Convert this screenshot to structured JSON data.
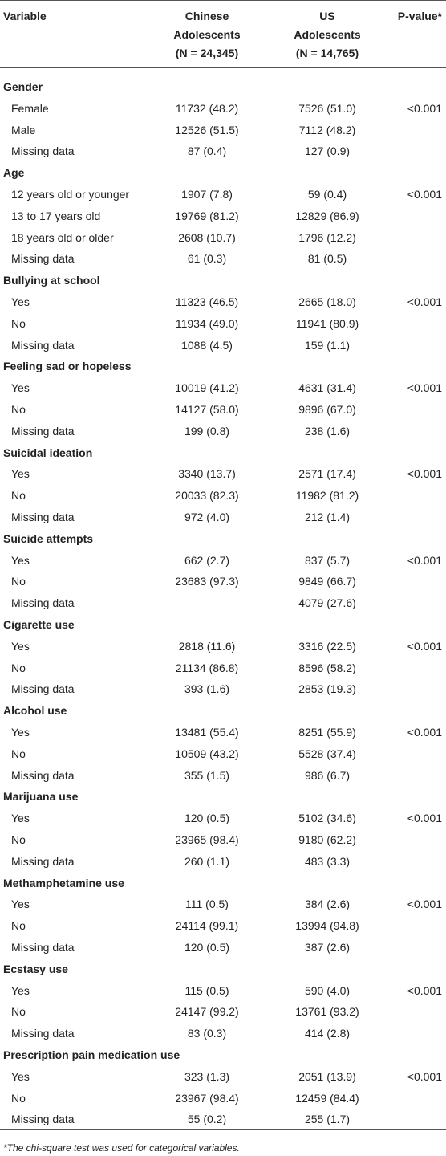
{
  "table": {
    "header": {
      "variable": "Variable",
      "chinese": [
        "Chinese",
        "Adolescents",
        "(N = 24,345)"
      ],
      "us": [
        "US",
        "Adolescents",
        "(N = 14,765)"
      ],
      "p": "P-value*"
    },
    "sections": [
      {
        "title": "Gender",
        "rows": [
          [
            "Female",
            "11732 (48.2)",
            "7526 (51.0)",
            "<0.001"
          ],
          [
            "Male",
            "12526 (51.5)",
            "7112 (48.2)",
            null
          ],
          [
            "Missing data",
            "87 (0.4)",
            "127 (0.9)",
            null
          ]
        ]
      },
      {
        "title": "Age",
        "rows": [
          [
            "12 years old or younger",
            "1907 (7.8)",
            "59 (0.4)",
            "<0.001"
          ],
          [
            "13 to 17 years old",
            "19769 (81.2)",
            "12829 (86.9)",
            null
          ],
          [
            "18 years old or older",
            "2608 (10.7)",
            "1796 (12.2)",
            null
          ],
          [
            "Missing data",
            "61 (0.3)",
            "81 (0.5)",
            null
          ]
        ]
      },
      {
        "title": "Bullying at school",
        "rows": [
          [
            "Yes",
            "11323 (46.5)",
            "2665 (18.0)",
            "<0.001"
          ],
          [
            "No",
            "11934 (49.0)",
            "11941 (80.9)",
            null
          ],
          [
            "Missing data",
            "1088 (4.5)",
            "159 (1.1)",
            null
          ]
        ]
      },
      {
        "title": "Feeling sad or hopeless",
        "rows": [
          [
            "Yes",
            "10019 (41.2)",
            "4631 (31.4)",
            "<0.001"
          ],
          [
            "No",
            "14127 (58.0)",
            "9896 (67.0)",
            null
          ],
          [
            "Missing data",
            "199 (0.8)",
            "238 (1.6)",
            null
          ]
        ]
      },
      {
        "title": "Suicidal ideation",
        "rows": [
          [
            "Yes",
            "3340 (13.7)",
            "2571 (17.4)",
            "<0.001"
          ],
          [
            "No",
            "20033 (82.3)",
            "11982 (81.2)",
            null
          ],
          [
            "Missing data",
            "972 (4.0)",
            "212 (1.4)",
            null
          ]
        ]
      },
      {
        "title": "Suicide attempts",
        "rows": [
          [
            "Yes",
            "662 (2.7)",
            "837 (5.7)",
            "<0.001"
          ],
          [
            "No",
            "23683 (97.3)",
            "9849 (66.7)",
            null
          ],
          [
            "Missing data",
            null,
            "4079 (27.6)",
            null
          ]
        ]
      },
      {
        "title": "Cigarette use",
        "rows": [
          [
            "Yes",
            "2818 (11.6)",
            "3316 (22.5)",
            "<0.001"
          ],
          [
            "No",
            "21134 (86.8)",
            "8596 (58.2)",
            null
          ],
          [
            "Missing data",
            "393 (1.6)",
            "2853 (19.3)",
            null
          ]
        ]
      },
      {
        "title": "Alcohol use",
        "rows": [
          [
            "Yes",
            "13481 (55.4)",
            "8251 (55.9)",
            "<0.001"
          ],
          [
            "No",
            "10509 (43.2)",
            "5528 (37.4)",
            null
          ],
          [
            "Missing data",
            "355 (1.5)",
            "986 (6.7)",
            null
          ]
        ]
      },
      {
        "title": "Marijuana use",
        "rows": [
          [
            "Yes",
            "120 (0.5)",
            "5102 (34.6)",
            "<0.001"
          ],
          [
            "No",
            "23965 (98.4)",
            "9180 (62.2)",
            null
          ],
          [
            "Missing data",
            "260 (1.1)",
            "483 (3.3)",
            null
          ]
        ]
      },
      {
        "title": "Methamphetamine use",
        "rows": [
          [
            "Yes",
            "111 (0.5)",
            "384 (2.6)",
            "<0.001"
          ],
          [
            "No",
            "24114 (99.1)",
            "13994 (94.8)",
            null
          ],
          [
            "Missing data",
            "120 (0.5)",
            "387 (2.6)",
            null
          ]
        ]
      },
      {
        "title": "Ecstasy use",
        "rows": [
          [
            "Yes",
            "115 (0.5)",
            "590 (4.0)",
            "<0.001"
          ],
          [
            "No",
            "24147 (99.2)",
            "13761 (93.2)",
            null
          ],
          [
            "Missing data",
            "83 (0.3)",
            "414 (2.8)",
            null
          ]
        ]
      },
      {
        "title": "Prescription pain medication use",
        "rows": [
          [
            "Yes",
            "323 (1.3)",
            "2051 (13.9)",
            "<0.001"
          ],
          [
            "No",
            "23967 (98.4)",
            "12459 (84.4)",
            null
          ],
          [
            "Missing data",
            "55 (0.2)",
            "255 (1.7)",
            null
          ]
        ]
      }
    ],
    "footnote": "*The chi-square test was used for categorical variables."
  }
}
